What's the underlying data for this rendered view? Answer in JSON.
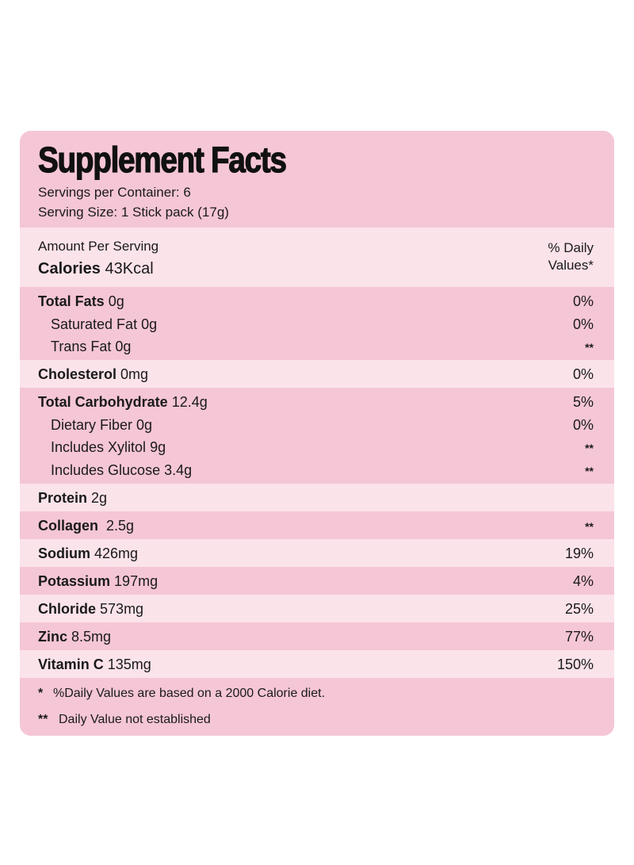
{
  "header": {
    "title": "Supplement Facts",
    "servings": "Servings per Container: 6",
    "serving_size": "Serving Size: 1 Stick pack (17g)"
  },
  "amount": {
    "label": "Amount Per Serving",
    "calories_label": "Calories",
    "calories_value": "43Kcal",
    "dv_heading_1": "% Daily",
    "dv_heading_2": "Values*"
  },
  "groups": [
    {
      "rows": [
        {
          "name": "Total Fats",
          "amount": "0g",
          "dv": "0%"
        },
        {
          "name": "Saturated Fat",
          "amount": "0g",
          "dv": "0%",
          "sub": true
        },
        {
          "name": "Trans Fat",
          "amount": "0g",
          "dv": "**",
          "sub": true
        }
      ]
    },
    {
      "rows": [
        {
          "name": "Cholesterol",
          "amount": "0mg",
          "dv": "0%"
        }
      ]
    },
    {
      "rows": [
        {
          "name": "Total Carbohydrate",
          "amount": "12.4g",
          "dv": "5%"
        },
        {
          "name": "Dietary Fiber",
          "amount": "0g",
          "dv": "0%",
          "sub": true
        },
        {
          "name": "Includes Xylitol",
          "amount": "9g",
          "dv": "**",
          "sub": true
        },
        {
          "name": "Includes Glucose",
          "amount": "3.4g",
          "dv": "**",
          "sub": true
        }
      ]
    },
    {
      "rows": [
        {
          "name": "Protein",
          "amount": "2g"
        }
      ]
    },
    {
      "rows": [
        {
          "name": "Collagen",
          "amount": "2.5g",
          "dv": "**"
        }
      ]
    },
    {
      "rows": [
        {
          "name": "Sodium",
          "amount": "426mg",
          "dv": "19%"
        }
      ]
    },
    {
      "rows": [
        {
          "name": "Potassium",
          "amount": "197mg",
          "dv": "4%"
        }
      ]
    },
    {
      "rows": [
        {
          "name": "Chloride",
          "amount": "573mg",
          "dv": "25%"
        }
      ]
    },
    {
      "rows": [
        {
          "name": "Zinc",
          "amount": "8.5mg",
          "dv": "77%"
        }
      ]
    },
    {
      "rows": [
        {
          "name": "Vitamin C",
          "amount": "135mg",
          "dv": "150%"
        }
      ]
    }
  ],
  "footnotes": [
    {
      "marker": "*",
      "text": "%Daily Values are based on a 2000 Calorie diet."
    },
    {
      "marker": "**",
      "text": "Daily Value not established"
    }
  ]
}
